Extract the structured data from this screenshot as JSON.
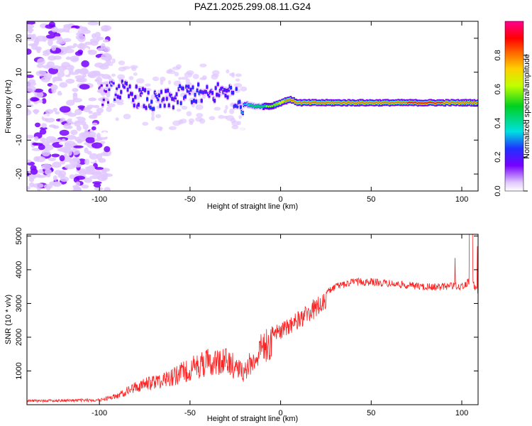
{
  "title": "PAZ1.2025.299.08.11.G24",
  "chart_data": [
    {
      "type": "heatmap",
      "xlabel": "Height of straight line (km)",
      "ylabel": "Frequency (Hz)",
      "xlim": [
        -140,
        109
      ],
      "ylim": [
        -25,
        25
      ],
      "xticks": [
        -100,
        -50,
        0,
        50,
        100
      ],
      "xtick_labels": [
        "-100",
        "-50",
        "0",
        "50",
        "100"
      ],
      "yticks": [
        -20,
        -10,
        0,
        10,
        20
      ],
      "ytick_labels": [
        "-20",
        "-10",
        "0",
        "10",
        "20"
      ],
      "colorbar": {
        "label": "Normalized spectral amplitude",
        "range": [
          0,
          1
        ],
        "ticks": [
          0.0,
          0.2,
          0.4,
          0.6,
          0.8
        ],
        "tick_labels": [
          "0.0",
          "0.2",
          "0.4",
          "0.6",
          "0.8"
        ]
      },
      "ridge": {
        "x": [
          -140,
          -120,
          -100,
          -90,
          -80,
          -70,
          -60,
          -50,
          -40,
          -30,
          -22,
          -15,
          -10,
          -5,
          0,
          5,
          10,
          20,
          30,
          50,
          70,
          90,
          109
        ],
        "freq": [
          0,
          2,
          3,
          5,
          3,
          1,
          2,
          4,
          3,
          5,
          1,
          0,
          0,
          0,
          1,
          2,
          1,
          1,
          1,
          1,
          1,
          1,
          1
        ],
        "amplitude": [
          0.1,
          0.15,
          0.2,
          0.3,
          0.3,
          0.32,
          0.3,
          0.33,
          0.3,
          0.3,
          0.35,
          0.55,
          0.6,
          0.65,
          0.8,
          0.85,
          0.9,
          0.88,
          0.88,
          0.88,
          0.9,
          0.9,
          0.88
        ]
      }
    },
    {
      "type": "line",
      "xlabel": "Height of straight line (km)",
      "ylabel": "SNR (10 * v/v)",
      "xlim": [
        -140,
        109
      ],
      "ylim": [
        0,
        5050
      ],
      "xticks": [
        -100,
        -50,
        0,
        50,
        100
      ],
      "xtick_labels": [
        "-100",
        "-50",
        "0",
        "50",
        "100"
      ],
      "yticks": [
        1000,
        2000,
        3000,
        4000,
        5000
      ],
      "ytick_labels": [
        "1000",
        "2000",
        "3000",
        "4000",
        "5000"
      ],
      "color": "#ff2020",
      "envelope": {
        "x": [
          -140,
          -100,
          -90,
          -80,
          -70,
          -60,
          -50,
          -40,
          -30,
          -25,
          -20,
          -18,
          -15,
          -10,
          -5,
          0,
          5,
          10,
          20,
          30,
          40,
          50,
          60,
          70,
          80,
          90,
          95,
          100,
          105,
          109
        ],
        "y": [
          150,
          180,
          350,
          700,
          900,
          1100,
          1400,
          1700,
          1700,
          1500,
          1200,
          1500,
          1700,
          2200,
          2400,
          2400,
          2600,
          2800,
          3200,
          3600,
          3750,
          3750,
          3700,
          3650,
          3600,
          3600,
          3650,
          3600,
          3800,
          3450
        ]
      }
    }
  ]
}
